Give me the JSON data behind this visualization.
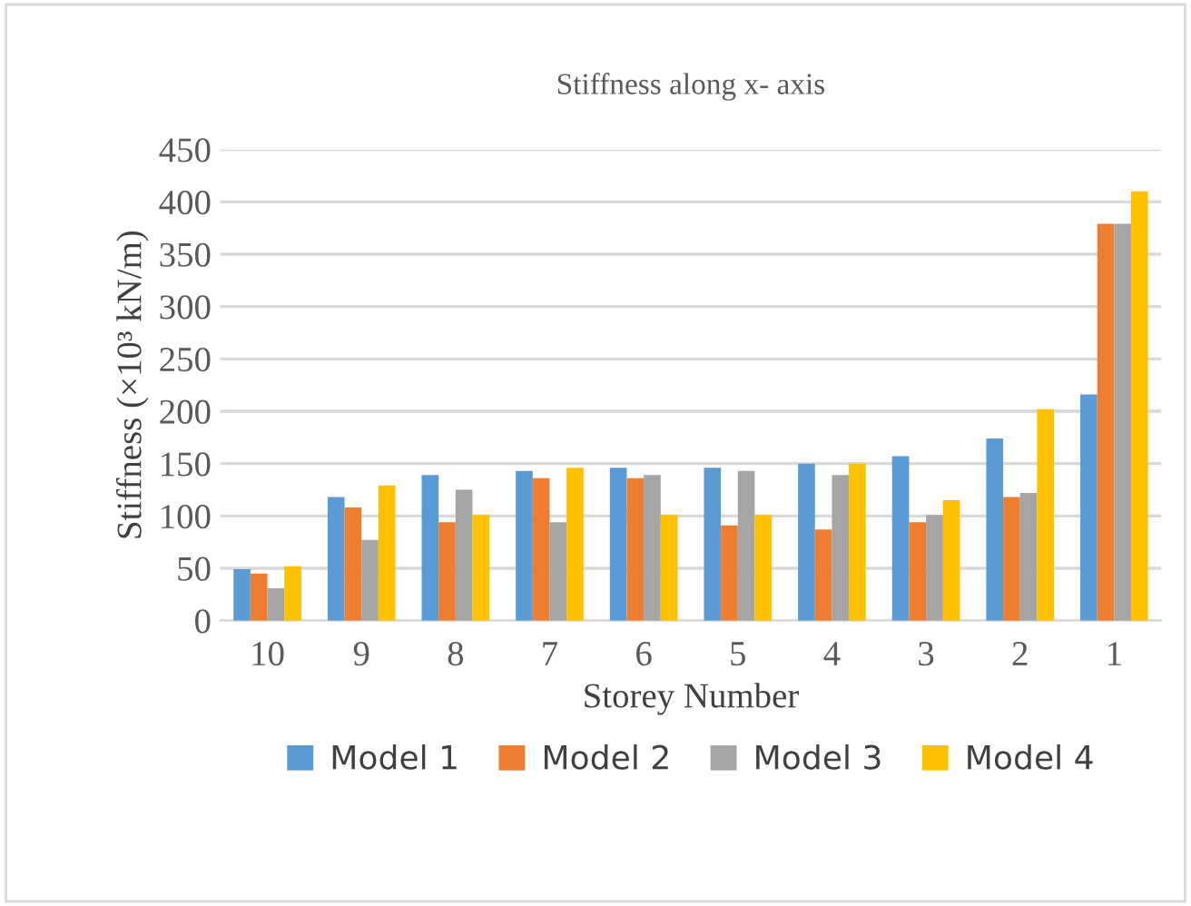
{
  "chart_data": {
    "type": "bar",
    "title": "Stiffness along x- axis",
    "xlabel": "Storey Number",
    "ylabel": "Stiffness (×10³ kN/m)",
    "categories": [
      "10",
      "9",
      "8",
      "7",
      "6",
      "5",
      "4",
      "3",
      "2",
      "1"
    ],
    "series": [
      {
        "name": "Model 1",
        "color": "#5b9bd5",
        "values": [
          49,
          118,
          139,
          143,
          146,
          146,
          150,
          157,
          174,
          216
        ]
      },
      {
        "name": "Model 2",
        "color": "#ed7d31",
        "values": [
          45,
          108,
          94,
          136,
          136,
          91,
          87,
          94,
          118,
          379
        ]
      },
      {
        "name": "Model 3",
        "color": "#a5a5a5",
        "values": [
          31,
          77,
          125,
          94,
          139,
          143,
          139,
          101,
          122,
          379
        ]
      },
      {
        "name": "Model 4",
        "color": "#ffc000",
        "values": [
          52,
          129,
          101,
          146,
          101,
          101,
          150,
          115,
          202,
          410
        ]
      }
    ],
    "ylim": [
      0,
      450
    ],
    "yticks": [
      0,
      50,
      100,
      150,
      200,
      250,
      300,
      350,
      400,
      450
    ],
    "grid": "y",
    "legend": "bottom"
  }
}
